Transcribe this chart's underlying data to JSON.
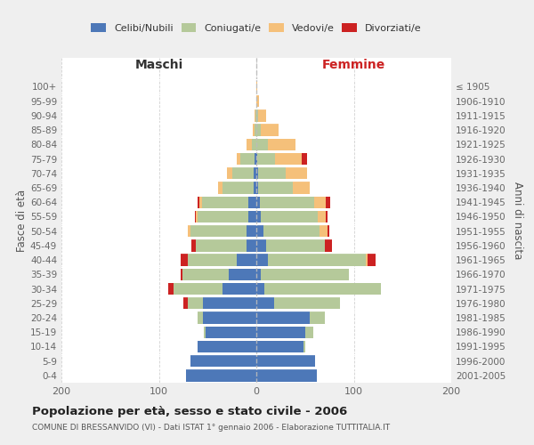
{
  "age_groups": [
    "0-4",
    "5-9",
    "10-14",
    "15-19",
    "20-24",
    "25-29",
    "30-34",
    "35-39",
    "40-44",
    "45-49",
    "50-54",
    "55-59",
    "60-64",
    "65-69",
    "70-74",
    "75-79",
    "80-84",
    "85-89",
    "90-94",
    "95-99",
    "100+"
  ],
  "birth_years": [
    "2001-2005",
    "1996-2000",
    "1991-1995",
    "1986-1990",
    "1981-1985",
    "1976-1980",
    "1971-1975",
    "1966-1970",
    "1961-1965",
    "1956-1960",
    "1951-1955",
    "1946-1950",
    "1941-1945",
    "1936-1940",
    "1931-1935",
    "1926-1930",
    "1921-1925",
    "1916-1920",
    "1911-1915",
    "1906-1910",
    "≤ 1905"
  ],
  "colors": {
    "celibi": "#4d78b8",
    "coniugati": "#b5c99a",
    "vedovi": "#f5c07a",
    "divorziati": "#cc2222"
  },
  "maschi_celibi": [
    72,
    68,
    60,
    52,
    55,
    55,
    35,
    28,
    20,
    10,
    10,
    8,
    8,
    3,
    3,
    2,
    0,
    0,
    0,
    0,
    0
  ],
  "maschi_coniugati": [
    0,
    0,
    0,
    2,
    5,
    15,
    50,
    48,
    50,
    52,
    58,
    52,
    48,
    32,
    22,
    14,
    5,
    2,
    1,
    0,
    0
  ],
  "maschi_vedovi": [
    0,
    0,
    0,
    0,
    0,
    0,
    0,
    0,
    0,
    0,
    2,
    2,
    2,
    4,
    5,
    4,
    5,
    2,
    1,
    0,
    0
  ],
  "maschi_divorziati": [
    0,
    0,
    0,
    0,
    0,
    5,
    5,
    2,
    8,
    5,
    0,
    1,
    2,
    0,
    0,
    0,
    0,
    0,
    0,
    0,
    0
  ],
  "femmine_celibi": [
    62,
    60,
    48,
    50,
    55,
    18,
    8,
    5,
    12,
    10,
    7,
    5,
    4,
    2,
    2,
    1,
    0,
    0,
    0,
    0,
    0
  ],
  "femmine_coniugati": [
    0,
    0,
    2,
    8,
    15,
    68,
    120,
    90,
    100,
    60,
    58,
    58,
    55,
    35,
    28,
    18,
    12,
    5,
    2,
    0,
    0
  ],
  "femmine_vedovi": [
    0,
    0,
    0,
    0,
    0,
    0,
    0,
    0,
    2,
    0,
    8,
    8,
    12,
    18,
    22,
    28,
    28,
    18,
    8,
    3,
    1
  ],
  "femmine_divorziati": [
    0,
    0,
    0,
    0,
    0,
    0,
    0,
    0,
    8,
    8,
    2,
    2,
    5,
    0,
    0,
    5,
    0,
    0,
    0,
    0,
    0
  ],
  "title": "Popolazione per età, sesso e stato civile - 2006",
  "subtitle": "COMUNE DI BRESSANVIDO (VI) - Dati ISTAT 1° gennaio 2006 - Elaborazione TUTTITALIA.IT",
  "header_left": "Maschi",
  "header_right": "Femmine",
  "ylabel_left": "Fasce di età",
  "ylabel_right": "Anni di nascita",
  "legend_labels": [
    "Celibi/Nubili",
    "Coniugati/e",
    "Vedovi/e",
    "Divorziati/e"
  ],
  "xlim": 200,
  "fig_facecolor": "#efefef",
  "plot_facecolor": "#ffffff"
}
